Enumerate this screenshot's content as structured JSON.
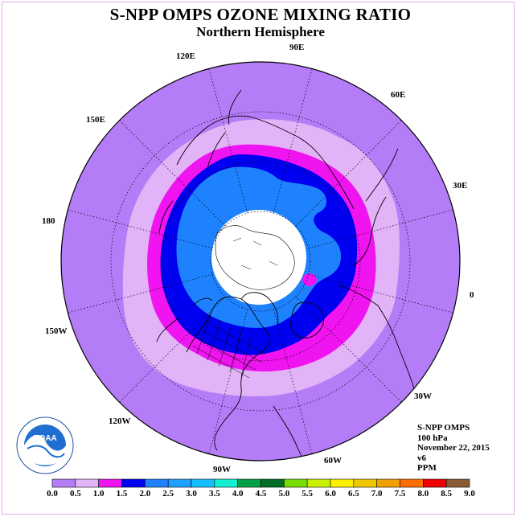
{
  "title": "S-NPP OMPS OZONE MIXING RATIO",
  "subtitle": "Northern Hemisphere",
  "map": {
    "projection": "north-polar-stereographic",
    "longitude_labels": [
      "90E",
      "60E",
      "30E",
      "0",
      "30W",
      "60W",
      "90W",
      "120W",
      "150W",
      "180",
      "150E",
      "120E"
    ],
    "colors": {
      "background": "#b57cf7",
      "band_0_5_1_0": "#e2b3f7",
      "band_1_0_1_5": "#f014f0",
      "band_1_5_2_0": "#0000f0",
      "band_2_0_2_5": "#1e82ff",
      "polar_night": "#ffffff",
      "frame": "#e6a8e6"
    }
  },
  "info": {
    "instrument": "S-NPP OMPS",
    "level": "100 hPa",
    "date": "November 22, 2015",
    "version": "v6",
    "units": "PPM"
  },
  "logo": {
    "text": "NOAA",
    "ring_text": "NATIONAL OCEANIC AND ATMOSPHERIC ADMINISTRATION",
    "ring_text_bottom": "U.S. DEPARTMENT OF COMMERCE"
  },
  "colorbar": {
    "ticks": [
      "0.0",
      "0.5",
      "1.0",
      "1.5",
      "2.0",
      "2.5",
      "3.0",
      "3.5",
      "4.0",
      "4.5",
      "5.0",
      "5.5",
      "6.0",
      "6.5",
      "7.0",
      "7.5",
      "8.0",
      "8.5",
      "9.0"
    ],
    "colors": [
      "#b57cf7",
      "#e2b3f7",
      "#f014f0",
      "#0000f0",
      "#1e82ff",
      "#1ea0ff",
      "#14beff",
      "#14f0d2",
      "#00a046",
      "#006e28",
      "#78dc00",
      "#c8f000",
      "#fff000",
      "#f0c800",
      "#f0a000",
      "#ff6e00",
      "#f00000",
      "#8c5a32"
    ]
  }
}
